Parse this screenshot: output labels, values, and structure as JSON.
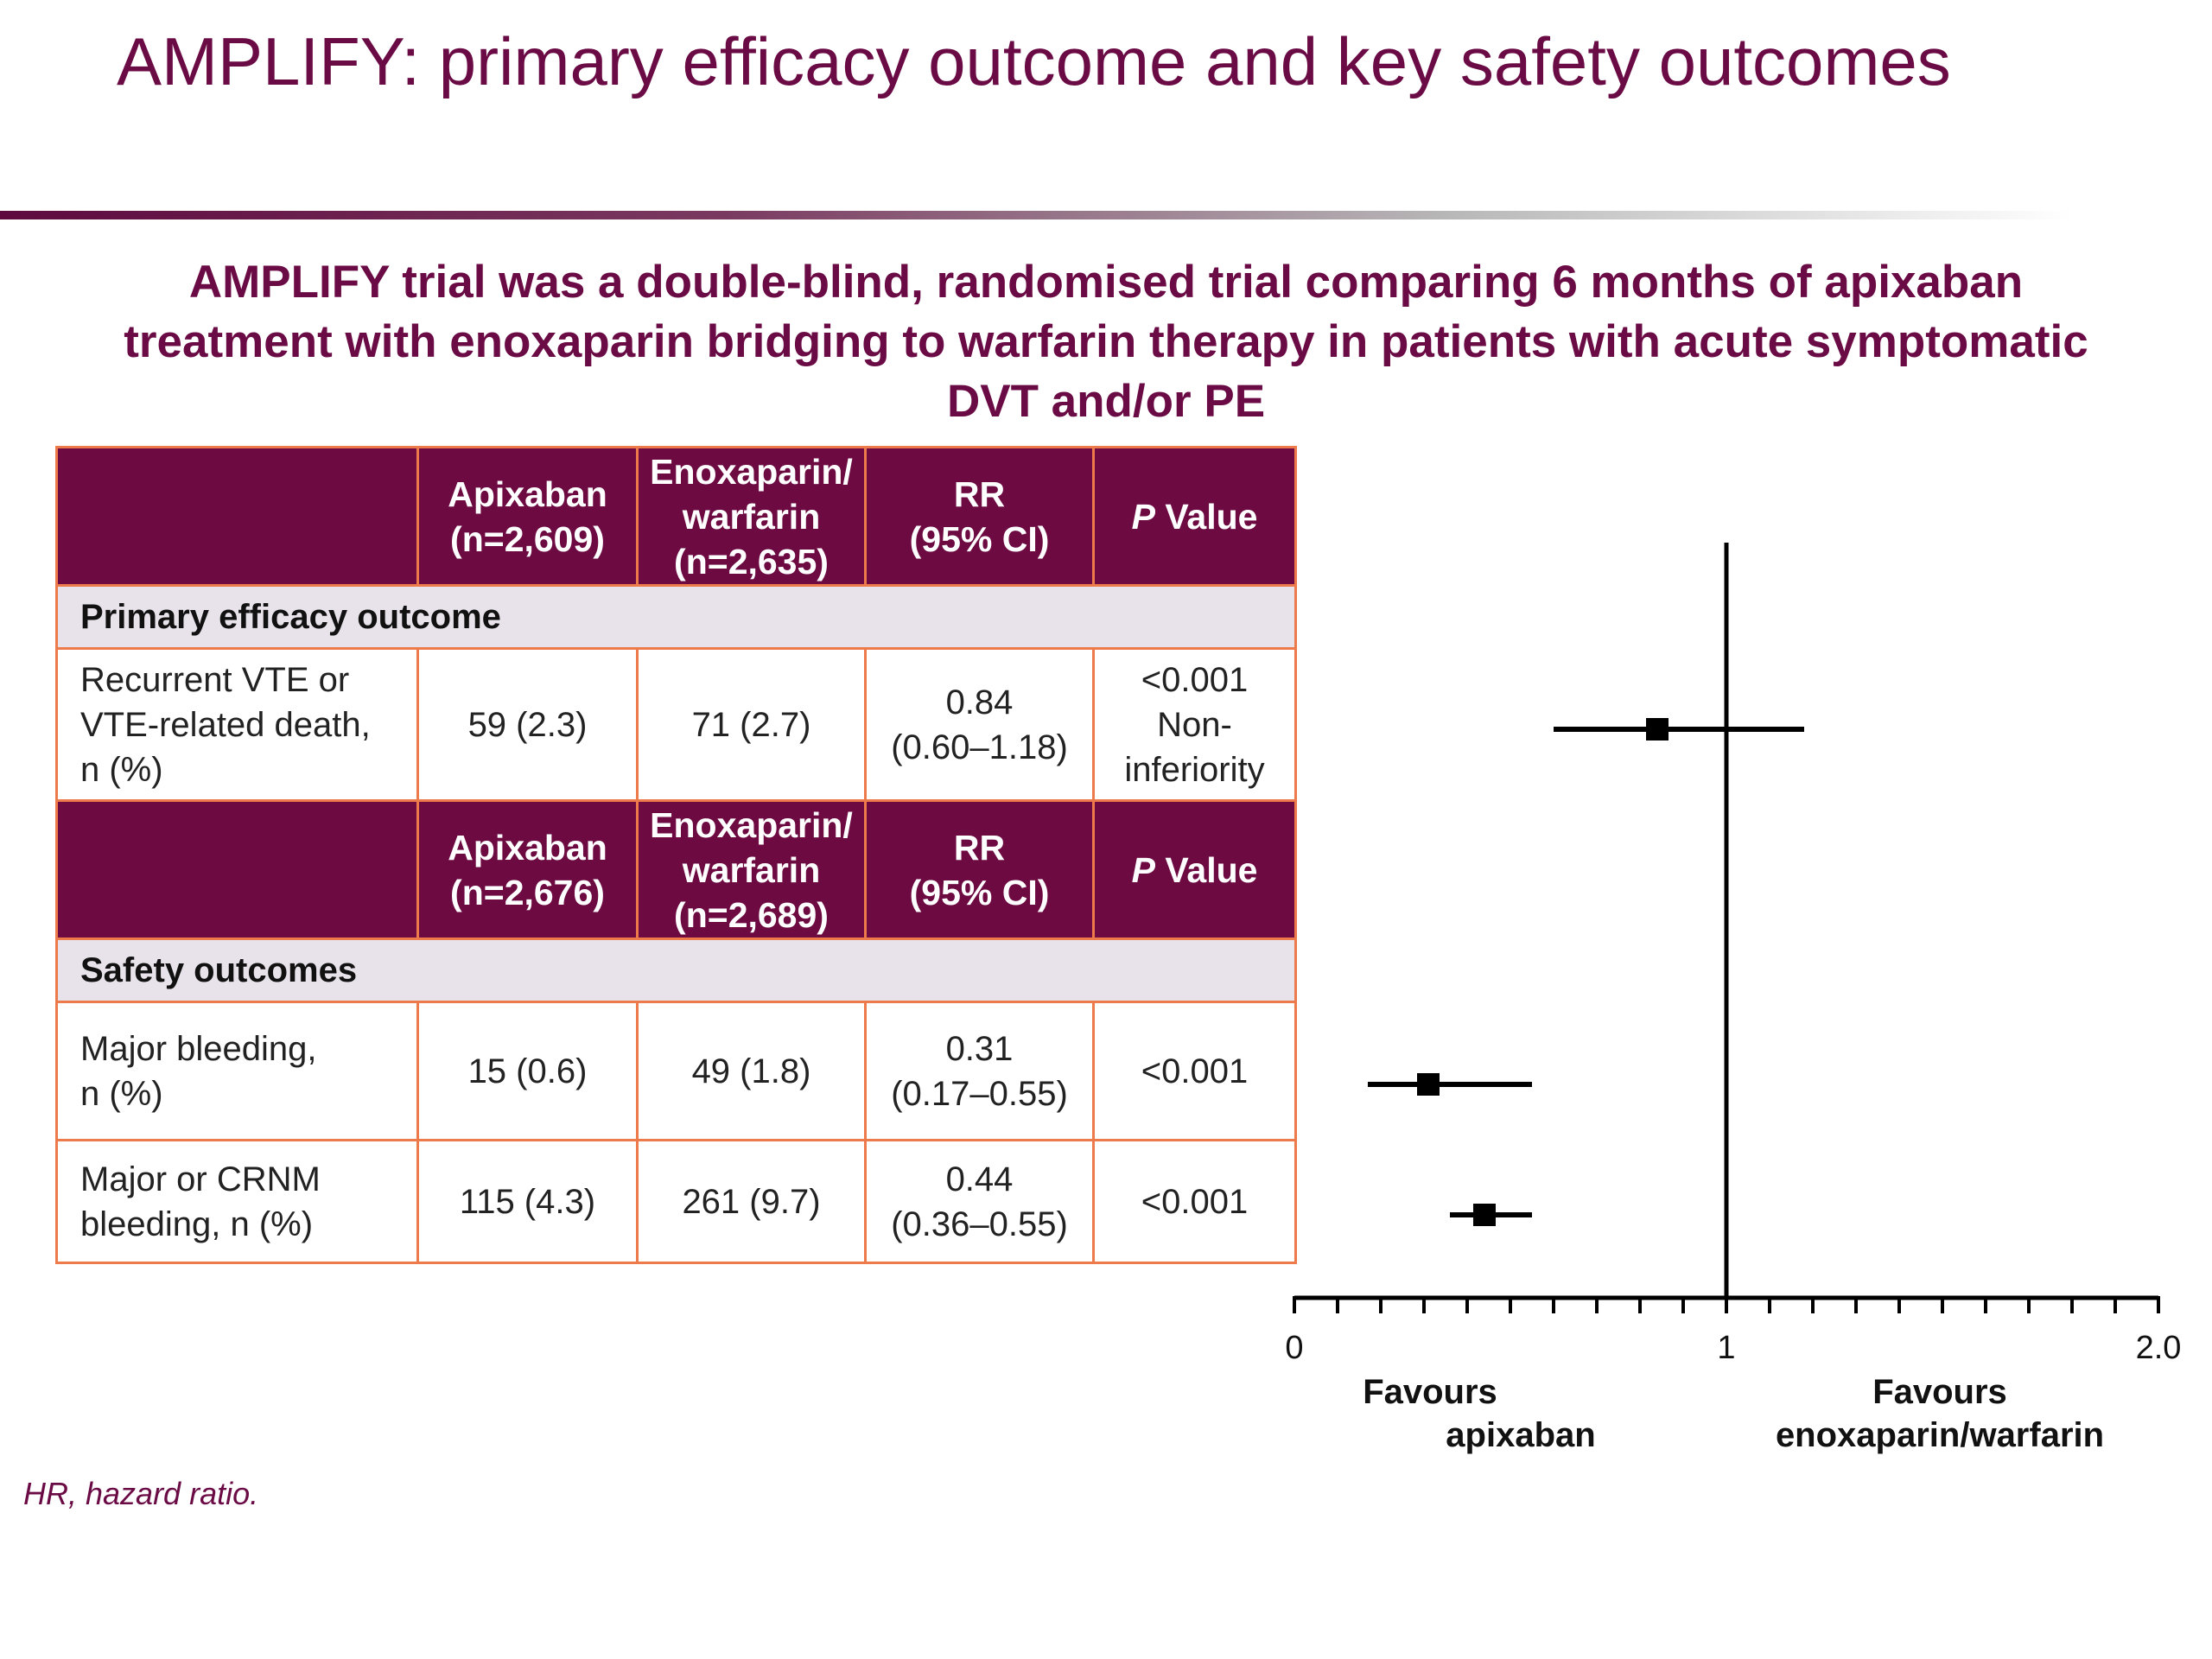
{
  "title": "AMPLIFY: primary efficacy outcome and key safety outcomes",
  "subtitle": "AMPLIFY trial was a double-blind, randomised trial comparing 6 months of apixaban treatment with enoxaparin bridging to warfarin therapy  in patients with acute symptomatic DVT and/or PE",
  "table": {
    "efficacy_header": {
      "apixaban": [
        "Apixaban",
        "(n=2,609)"
      ],
      "enox": [
        "Enoxaparin/",
        "warfarin",
        "(n=2,635)"
      ],
      "rr": [
        "RR",
        "(95% CI)"
      ],
      "p_italic": "P",
      "p_rest": " Value"
    },
    "efficacy_section": "Primary efficacy outcome",
    "efficacy_row": {
      "outcome": [
        "Recurrent VTE or",
        "VTE-related death,",
        "n (%)"
      ],
      "apixaban": "59 (2.3)",
      "enox": "71 (2.7)",
      "rr": [
        "0.84",
        "(0.60–1.18)"
      ],
      "p": [
        "<0.001",
        "Non-",
        "inferiority"
      ]
    },
    "safety_header": {
      "apixaban": [
        "Apixaban",
        "(n=2,676)"
      ],
      "enox": [
        "Enoxaparin/",
        "warfarin",
        "(n=2,689)"
      ],
      "rr": [
        "RR",
        "(95% CI)"
      ],
      "p_italic": "P",
      "p_rest": " Value"
    },
    "safety_section": "Safety outcomes",
    "safety_rows": [
      {
        "outcome": [
          "Major bleeding,",
          "n (%)"
        ],
        "apixaban": "15 (0.6)",
        "enox": "49 (1.8)",
        "rr": [
          "0.31",
          "(0.17–0.55)"
        ],
        "p": [
          "<0.001"
        ]
      },
      {
        "outcome": [
          "Major or CRNM",
          "bleeding, n (%)"
        ],
        "apixaban": "115 (4.3)",
        "enox": "261 (9.7)",
        "rr": [
          "0.44",
          "(0.36–0.55)"
        ],
        "p": [
          "<0.001"
        ]
      }
    ]
  },
  "chart_data": {
    "type": "scatter",
    "subtype": "forest-plot",
    "x_axis": {
      "range": [
        0,
        2.0
      ],
      "tick_labels": [
        "0",
        "1",
        "2.0"
      ],
      "tick_values": [
        0,
        1,
        2.0
      ],
      "minor_tick_step": 0.1,
      "reference_line": 1
    },
    "points": [
      {
        "estimate": 0.84,
        "lower": 0.6,
        "upper": 1.18
      },
      {
        "estimate": 0.31,
        "lower": 0.17,
        "upper": 0.55
      },
      {
        "estimate": 0.44,
        "lower": 0.36,
        "upper": 0.55
      }
    ],
    "left_label": [
      "Favours",
      "apixaban"
    ],
    "right_label": [
      "Favours",
      "enoxaparin/warfarin"
    ],
    "marker_color": "#000000"
  },
  "footnote": "HR, hazard ratio."
}
